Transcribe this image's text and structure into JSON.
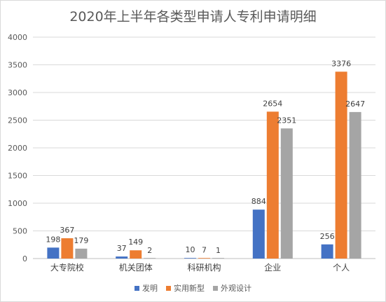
{
  "chart_data": {
    "type": "bar",
    "title": "2020年上半年各类型申请人专利申请明细",
    "categories": [
      "大专院校",
      "机关团体",
      "科研机构",
      "企业",
      "个人"
    ],
    "series": [
      {
        "name": "发明",
        "color": "#4472c4",
        "values": [
          198,
          37,
          10,
          884,
          256
        ]
      },
      {
        "name": "实用新型",
        "color": "#ed7d31",
        "values": [
          367,
          149,
          7,
          2654,
          3376
        ]
      },
      {
        "name": "外观设计",
        "color": "#a5a5a5",
        "values": [
          179,
          2,
          1,
          2351,
          2647
        ]
      }
    ],
    "ylim": [
      0,
      4000
    ],
    "yticks": [
      0,
      500,
      1000,
      1500,
      2000,
      2500,
      3000,
      3500,
      4000
    ],
    "xlabel": "",
    "ylabel": "",
    "grid": true,
    "legend_position": "bottom"
  }
}
